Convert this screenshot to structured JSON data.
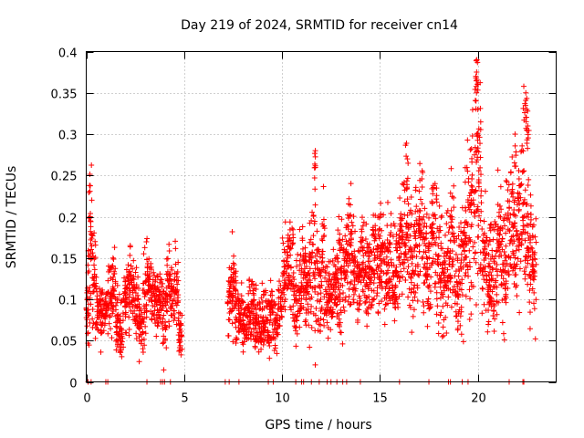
{
  "chart_data": {
    "type": "scatter",
    "title": "Day 219 of 2024, SRMTID for receiver cn14",
    "xlabel": "GPS time / hours",
    "ylabel": "SRMTID / TECUs",
    "xlim": [
      0,
      24
    ],
    "ylim": [
      0,
      0.4
    ],
    "xticks": [
      0,
      5,
      10,
      15,
      20
    ],
    "yticks": [
      0,
      0.05,
      0.1,
      0.15,
      0.2,
      0.25,
      0.3,
      0.35,
      0.4
    ],
    "grid": true,
    "legend": "none",
    "marker": "+",
    "color": "#ff0000",
    "series": [
      {
        "name": "SRMTID cn14",
        "summary_x_hours": [
          0.05,
          0.2,
          0.4,
          0.6,
          0.8,
          1.0,
          1.2,
          1.4,
          1.6,
          1.8,
          2.0,
          2.2,
          2.4,
          2.6,
          2.8,
          3.0,
          3.2,
          3.4,
          3.6,
          3.8,
          4.0,
          4.2,
          4.4,
          4.6,
          4.8,
          7.3,
          7.5,
          7.7,
          7.9,
          8.1,
          8.3,
          8.5,
          8.7,
          8.9,
          9.1,
          9.3,
          9.5,
          9.7,
          9.9,
          10.1,
          10.3,
          10.5,
          10.7,
          10.9,
          11.1,
          11.3,
          11.5,
          11.7,
          11.9,
          12.1,
          12.3,
          12.5,
          12.7,
          12.9,
          13.1,
          13.3,
          13.5,
          13.7,
          13.9,
          14.1,
          14.3,
          14.5,
          14.7,
          14.9,
          15.1,
          15.3,
          15.5,
          15.7,
          15.9,
          16.1,
          16.3,
          16.5,
          16.7,
          16.9,
          17.1,
          17.3,
          17.5,
          17.7,
          17.9,
          18.1,
          18.3,
          18.5,
          18.7,
          18.9,
          19.1,
          19.3,
          19.5,
          19.7,
          19.9,
          20.1,
          20.3,
          20.5,
          20.7,
          20.9,
          21.1,
          21.3,
          21.5,
          21.7,
          21.9,
          22.1,
          22.3,
          22.5,
          22.7,
          22.9
        ],
        "summary_y_tecu": [
          0.09,
          0.17,
          0.12,
          0.09,
          0.08,
          0.09,
          0.1,
          0.11,
          0.07,
          0.06,
          0.1,
          0.11,
          0.1,
          0.09,
          0.07,
          0.1,
          0.12,
          0.11,
          0.09,
          0.1,
          0.08,
          0.12,
          0.1,
          0.13,
          0.06,
          0.1,
          0.11,
          0.09,
          0.08,
          0.07,
          0.08,
          0.09,
          0.08,
          0.07,
          0.08,
          0.07,
          0.08,
          0.07,
          0.09,
          0.12,
          0.14,
          0.13,
          0.1,
          0.12,
          0.13,
          0.11,
          0.13,
          0.15,
          0.12,
          0.14,
          0.11,
          0.1,
          0.12,
          0.11,
          0.13,
          0.15,
          0.16,
          0.14,
          0.12,
          0.15,
          0.14,
          0.13,
          0.16,
          0.14,
          0.15,
          0.13,
          0.15,
          0.12,
          0.14,
          0.17,
          0.2,
          0.16,
          0.14,
          0.17,
          0.19,
          0.15,
          0.13,
          0.18,
          0.16,
          0.14,
          0.12,
          0.15,
          0.17,
          0.11,
          0.13,
          0.16,
          0.18,
          0.21,
          0.23,
          0.24,
          0.15,
          0.13,
          0.14,
          0.12,
          0.17,
          0.15,
          0.18,
          0.19,
          0.17,
          0.2,
          0.22,
          0.18,
          0.15,
          0.14
        ],
        "spread_tecu": [
          0.04,
          0.07,
          0.05,
          0.03,
          0.03,
          0.02,
          0.03,
          0.04,
          0.03,
          0.03,
          0.03,
          0.04,
          0.03,
          0.03,
          0.03,
          0.04,
          0.03,
          0.03,
          0.03,
          0.03,
          0.04,
          0.03,
          0.03,
          0.04,
          0.02,
          0.03,
          0.04,
          0.03,
          0.03,
          0.03,
          0.03,
          0.03,
          0.03,
          0.03,
          0.03,
          0.03,
          0.03,
          0.02,
          0.03,
          0.04,
          0.04,
          0.05,
          0.04,
          0.04,
          0.05,
          0.04,
          0.05,
          0.08,
          0.05,
          0.06,
          0.04,
          0.03,
          0.04,
          0.04,
          0.05,
          0.05,
          0.05,
          0.05,
          0.04,
          0.05,
          0.05,
          0.04,
          0.05,
          0.05,
          0.05,
          0.04,
          0.05,
          0.04,
          0.05,
          0.06,
          0.07,
          0.06,
          0.06,
          0.06,
          0.06,
          0.05,
          0.05,
          0.06,
          0.06,
          0.05,
          0.05,
          0.05,
          0.06,
          0.05,
          0.05,
          0.06,
          0.07,
          0.08,
          0.1,
          0.09,
          0.06,
          0.05,
          0.05,
          0.05,
          0.06,
          0.06,
          0.07,
          0.06,
          0.06,
          0.07,
          0.08,
          0.07,
          0.06,
          0.05
        ],
        "peaks": [
          {
            "x": 0.2,
            "y": 0.2
          },
          {
            "x": 11.7,
            "y": 0.28
          },
          {
            "x": 12.9,
            "y": 0.2
          },
          {
            "x": 16.4,
            "y": 0.27
          },
          {
            "x": 19.95,
            "y": 0.39
          },
          {
            "x": 19.9,
            "y": 0.37
          },
          {
            "x": 20.0,
            "y": 0.33
          },
          {
            "x": 22.45,
            "y": 0.35
          },
          {
            "x": 22.5,
            "y": 0.33
          },
          {
            "x": 21.9,
            "y": 0.3
          },
          {
            "x": 22.55,
            "y": 0.31
          }
        ],
        "zero_x_hours": [
          0.1,
          0.25,
          1.0,
          1.1,
          3.1,
          3.8,
          3.9,
          4.0,
          4.3,
          7.1,
          7.3,
          7.8,
          9.3,
          9.55,
          10.7,
          11.0,
          11.1,
          11.5,
          11.9,
          12.3,
          12.5,
          12.8,
          13.1,
          13.3,
          14.0,
          16.0,
          17.5,
          18.5,
          18.6,
          19.2,
          19.5,
          21.6,
          22.3,
          22.35
        ]
      }
    ]
  }
}
